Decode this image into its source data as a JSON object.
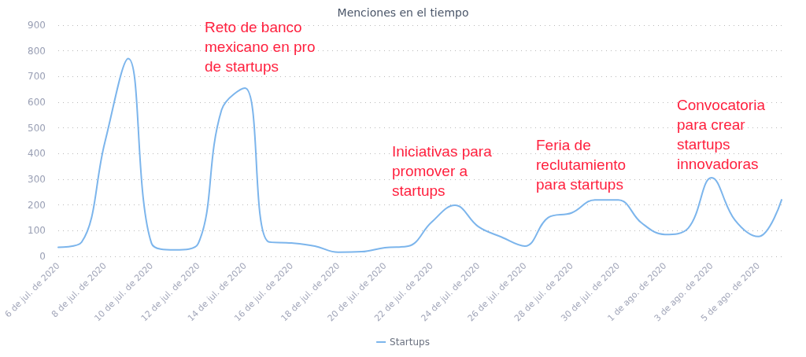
{
  "chart_data": {
    "type": "line",
    "title": "Menciones en el tiempo",
    "categories": [
      "6 de jul. de 2020",
      null,
      "8 de jul. de 2020",
      null,
      "10 de jul. de 2020",
      null,
      "12 de jul. de 2020",
      null,
      "14 de jul. de 2020",
      null,
      "16 de jul. de 2020",
      null,
      "18 de jul. de 2020",
      null,
      "20 de jul. de 2020",
      null,
      "22 de jul. de 2020",
      null,
      "24 de jul. de 2020",
      null,
      "26 de jul. de 2020",
      null,
      "28 de jul. de 2020",
      null,
      "30 de jul. de 2020",
      null,
      "1 de ago. de 2020",
      null,
      "3 de ago. de 2020",
      null,
      "5 de ago. de 2020",
      null
    ],
    "series": [
      {
        "name": "Startups",
        "color": "#7cb5ec",
        "values": [
          35,
          55,
          445,
          770,
          50,
          25,
          50,
          570,
          655,
          57,
          52,
          40,
          16,
          18,
          34,
          40,
          133,
          199,
          116,
          75,
          40,
          151,
          169,
          220,
          220,
          130,
          85,
          110,
          306,
          141,
          77,
          220
        ]
      }
    ],
    "ylim": [
      0,
      900
    ],
    "yticks": [
      0,
      100,
      200,
      300,
      400,
      500,
      600,
      700,
      800,
      900
    ],
    "grid": "y",
    "legend": "bottom",
    "marker": "none",
    "line_style": "solid",
    "annotations": [
      "Reto de banco mexicano en pro de startups",
      "Iniciativas para promover a startups",
      "Feria de reclutamiento para startups",
      "Convocatoria para crear startups innovadoras"
    ]
  }
}
